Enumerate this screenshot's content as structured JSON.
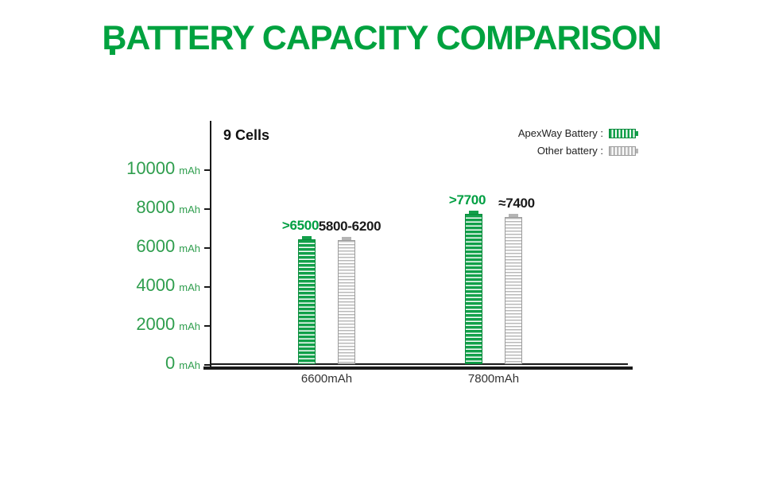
{
  "title": "BATTERY CAPACITY COMPARISON",
  "legend": {
    "items": [
      {
        "label": "ApexWay Battery :",
        "swatch": "green-striped-battery-icon",
        "color": "#12a04a"
      },
      {
        "label": "Other battery :",
        "swatch": "gray-striped-battery-icon",
        "color": "#b5b5b5"
      }
    ]
  },
  "colors": {
    "accent_green": "#00a23f",
    "bar_green": "#12a04a",
    "bar_gray": "#b5b5b5",
    "axis": "#1a1a1a",
    "ytick_green": "#2f9e4e"
  },
  "chart_data": {
    "type": "bar",
    "title": "BATTERY CAPACITY COMPARISON",
    "annotation": "9 Cells",
    "categories": [
      "6600mAh",
      "7800mAh"
    ],
    "series": [
      {
        "name": "ApexWay Battery",
        "values": [
          6500,
          7700
        ],
        "draw_values": [
          6400,
          7700
        ],
        "labels": [
          ">6500",
          ">7700"
        ],
        "label_color": "#009f42",
        "bar_style": "green"
      },
      {
        "name": "Other battery",
        "values": [
          6000,
          7400
        ],
        "draw_values": [
          6350,
          7550
        ],
        "labels": [
          "5800-6200",
          "≈7400"
        ],
        "label_color": "#1a1a1a",
        "bar_style": "gray"
      }
    ],
    "ylim": [
      0,
      10000
    ],
    "yticks": [
      0,
      2000,
      4000,
      6000,
      8000,
      10000
    ],
    "ytick_suffix": "mAh",
    "xlabel": "",
    "ylabel": "mAh",
    "grid": false,
    "legend_position": "top-right"
  }
}
